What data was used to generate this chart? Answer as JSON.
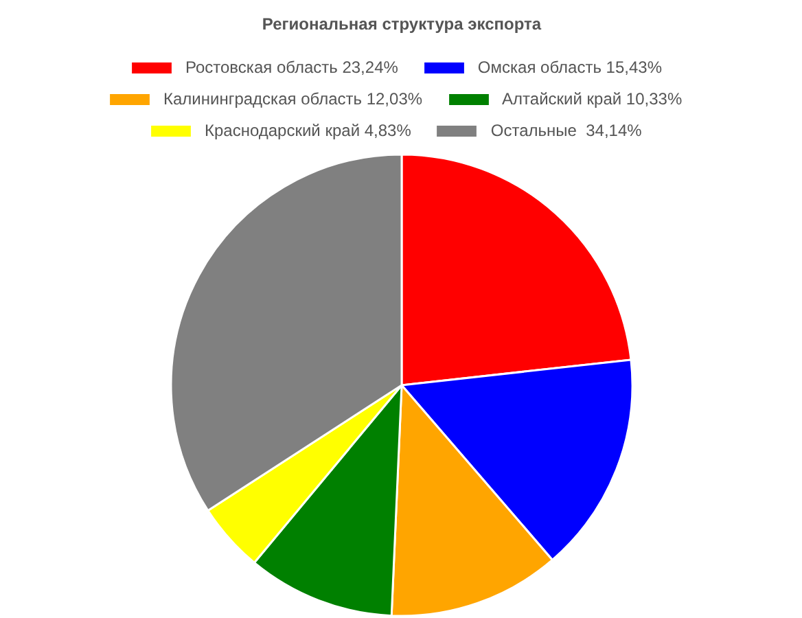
{
  "chart_data": {
    "type": "pie",
    "title": "Региональная структура экспорта",
    "categories": [
      "Ростовская область 23,24%",
      "Омская область 15,43%",
      "Калининградская область 12,03%",
      "Алтайский край 10,33%",
      "Краснодарский край 4,83%",
      "Остальные  34,14%"
    ],
    "values": [
      23.24,
      15.43,
      12.03,
      10.33,
      4.83,
      34.14
    ],
    "colors": [
      "#ff0000",
      "#0000ff",
      "#ffa500",
      "#008000",
      "#ffff00",
      "#808080"
    ],
    "legend": "top"
  }
}
